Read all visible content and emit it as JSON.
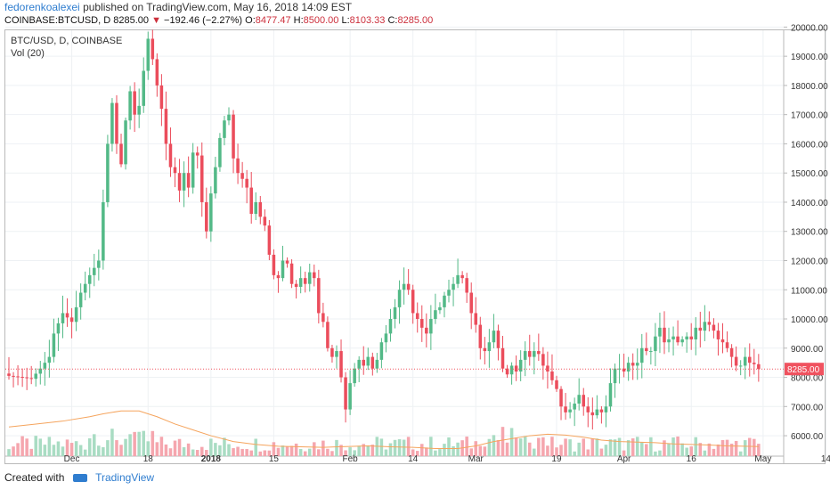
{
  "header": {
    "author": "fedorenkoalexei",
    "published_text": "published on TradingView.com, May 16, 2018 14:09 EST",
    "symbol": "COINBASE:BTCUSD, D",
    "price": "8285.00",
    "change": "−192.46 (−2.27%)",
    "o_label": "O:",
    "o_value": "8477.47",
    "h_label": "H:",
    "h_value": "8500.00",
    "l_label": "L:",
    "l_value": "8103.33",
    "c_label": "C:",
    "c_value": "8285.00"
  },
  "legend": {
    "series": "BTC/USD, D, COINBASE",
    "volume": "Vol (20)"
  },
  "footer": {
    "created_with": "Created with",
    "brand": "TradingView"
  },
  "colors": {
    "up": "#53b987",
    "down": "#eb4d5c",
    "up_vol": "#a9dcc3",
    "down_vol": "#f5a6ae",
    "vol_ma": "#f5a45d",
    "last_price": "#f0525f"
  },
  "chart_data": {
    "type": "candlestick",
    "title": "BTC/USD, D, COINBASE",
    "ylim": [
      5300,
      20500
    ],
    "y_ticks": [
      "20000.00",
      "19000.00",
      "18000.00",
      "17000.00",
      "16000.00",
      "15000.00",
      "14000.00",
      "13000.00",
      "12000.00",
      "11000.00",
      "10000.00",
      "9000.00",
      "8000.00",
      "7000.00",
      "6000.00"
    ],
    "y_tick_values": [
      20000,
      19000,
      18000,
      17000,
      16000,
      15000,
      14000,
      13000,
      12000,
      11000,
      10000,
      9000,
      8000,
      7000,
      6000
    ],
    "x_tick_labels": [
      "Dec",
      "18",
      "2018",
      "15",
      "Feb",
      "14",
      "Mar",
      "19",
      "Apr",
      "16",
      "May",
      "14"
    ],
    "x_tick_days": [
      14,
      31,
      45,
      59,
      76,
      90,
      104,
      122,
      137,
      152,
      168,
      182
    ],
    "last_price": 8285.0,
    "last_price_label": "8285.00",
    "close_path": [
      [
        0,
        8050
      ],
      [
        3,
        8000
      ],
      [
        5,
        7950
      ],
      [
        7,
        8300
      ],
      [
        9,
        8700
      ],
      [
        10,
        9500
      ],
      [
        12,
        10200
      ],
      [
        14,
        9900
      ],
      [
        16,
        10900
      ],
      [
        18,
        11500
      ],
      [
        20,
        12000
      ],
      [
        21,
        14000
      ],
      [
        22,
        16000
      ],
      [
        23,
        17400
      ],
      [
        24,
        16000
      ],
      [
        25,
        15300
      ],
      [
        26,
        16800
      ],
      [
        27,
        17800
      ],
      [
        28,
        17000
      ],
      [
        29,
        17300
      ],
      [
        30,
        18500
      ],
      [
        31,
        19600
      ],
      [
        32,
        18900
      ],
      [
        33,
        18000
      ],
      [
        34,
        17200
      ],
      [
        35,
        16000
      ],
      [
        36,
        15200
      ],
      [
        37,
        15000
      ],
      [
        38,
        14400
      ],
      [
        39,
        15000
      ],
      [
        40,
        14500
      ],
      [
        41,
        15700
      ],
      [
        42,
        15600
      ],
      [
        43,
        14000
      ],
      [
        44,
        13000
      ],
      [
        45,
        14300
      ],
      [
        46,
        15200
      ],
      [
        47,
        16200
      ],
      [
        48,
        16800
      ],
      [
        49,
        17000
      ],
      [
        50,
        15500
      ],
      [
        51,
        15000
      ],
      [
        52,
        14800
      ],
      [
        53,
        14500
      ],
      [
        54,
        13600
      ],
      [
        55,
        14000
      ],
      [
        56,
        13500
      ],
      [
        57,
        13200
      ],
      [
        58,
        12200
      ],
      [
        59,
        11500
      ],
      [
        60,
        11400
      ],
      [
        61,
        12000
      ],
      [
        62,
        11900
      ],
      [
        63,
        11200
      ],
      [
        64,
        11100
      ],
      [
        65,
        11400
      ],
      [
        66,
        11200
      ],
      [
        67,
        11600
      ],
      [
        68,
        11400
      ],
      [
        69,
        10200
      ],
      [
        70,
        9900
      ],
      [
        71,
        9000
      ],
      [
        72,
        8700
      ],
      [
        73,
        8900
      ],
      [
        74,
        8000
      ],
      [
        75,
        6900
      ],
      [
        76,
        7800
      ],
      [
        77,
        8300
      ],
      [
        78,
        8600
      ],
      [
        79,
        8400
      ],
      [
        80,
        8700
      ],
      [
        81,
        8300
      ],
      [
        82,
        8600
      ],
      [
        83,
        9200
      ],
      [
        84,
        9500
      ],
      [
        85,
        10000
      ],
      [
        86,
        10400
      ],
      [
        87,
        11000
      ],
      [
        88,
        11200
      ],
      [
        89,
        11000
      ],
      [
        90,
        10200
      ],
      [
        91,
        10000
      ],
      [
        92,
        9700
      ],
      [
        93,
        9500
      ],
      [
        94,
        10000
      ],
      [
        95,
        10300
      ],
      [
        96,
        10400
      ],
      [
        97,
        10800
      ],
      [
        98,
        11000
      ],
      [
        99,
        11200
      ],
      [
        100,
        11500
      ],
      [
        101,
        11400
      ],
      [
        102,
        10900
      ],
      [
        103,
        10200
      ],
      [
        104,
        9800
      ],
      [
        105,
        9000
      ],
      [
        106,
        8900
      ],
      [
        107,
        9200
      ],
      [
        108,
        9600
      ],
      [
        109,
        9000
      ],
      [
        110,
        8300
      ],
      [
        111,
        8100
      ],
      [
        112,
        8400
      ],
      [
        113,
        8200
      ],
      [
        114,
        8600
      ],
      [
        115,
        8900
      ],
      [
        116,
        8700
      ],
      [
        117,
        8900
      ],
      [
        118,
        8800
      ],
      [
        119,
        8400
      ],
      [
        120,
        8200
      ],
      [
        121,
        7900
      ],
      [
        122,
        7600
      ],
      [
        123,
        7000
      ],
      [
        124,
        6800
      ],
      [
        125,
        6900
      ],
      [
        126,
        7100
      ],
      [
        127,
        7400
      ],
      [
        128,
        7000
      ],
      [
        129,
        6800
      ],
      [
        130,
        6700
      ],
      [
        131,
        6900
      ],
      [
        132,
        6800
      ],
      [
        133,
        7000
      ],
      [
        134,
        7800
      ],
      [
        135,
        8300
      ],
      [
        136,
        8300
      ],
      [
        137,
        8200
      ],
      [
        138,
        8500
      ],
      [
        139,
        8400
      ],
      [
        140,
        8500
      ],
      [
        141,
        9000
      ],
      [
        142,
        8900
      ],
      [
        143,
        8900
      ],
      [
        144,
        9400
      ],
      [
        145,
        9700
      ],
      [
        146,
        9200
      ],
      [
        147,
        9300
      ],
      [
        148,
        9400
      ],
      [
        149,
        9200
      ],
      [
        150,
        9300
      ],
      [
        151,
        9400
      ],
      [
        152,
        9300
      ],
      [
        153,
        9700
      ],
      [
        154,
        9600
      ],
      [
        155,
        9900
      ],
      [
        156,
        9800
      ],
      [
        157,
        9600
      ],
      [
        158,
        9300
      ],
      [
        159,
        9200
      ],
      [
        160,
        9000
      ],
      [
        161,
        8700
      ],
      [
        162,
        8400
      ],
      [
        163,
        8400
      ],
      [
        164,
        8700
      ],
      [
        165,
        8500
      ],
      [
        166,
        8450
      ],
      [
        167,
        8285
      ]
    ],
    "volume_ma_path": [
      [
        0,
        6300
      ],
      [
        6,
        6400
      ],
      [
        12,
        6500
      ],
      [
        18,
        6650
      ],
      [
        21,
        6750
      ],
      [
        25,
        6850
      ],
      [
        29,
        6850
      ],
      [
        33,
        6650
      ],
      [
        37,
        6400
      ],
      [
        41,
        6200
      ],
      [
        45,
        6000
      ],
      [
        50,
        5800
      ],
      [
        55,
        5700
      ],
      [
        60,
        5640
      ],
      [
        65,
        5620
      ],
      [
        70,
        5600
      ],
      [
        75,
        5630
      ],
      [
        80,
        5650
      ],
      [
        85,
        5620
      ],
      [
        90,
        5600
      ],
      [
        95,
        5560
      ],
      [
        100,
        5560
      ],
      [
        104,
        5650
      ],
      [
        108,
        5800
      ],
      [
        112,
        5900
      ],
      [
        116,
        6000
      ],
      [
        120,
        6050
      ],
      [
        124,
        6020
      ],
      [
        128,
        5950
      ],
      [
        132,
        5850
      ],
      [
        136,
        5800
      ],
      [
        140,
        5780
      ],
      [
        144,
        5760
      ],
      [
        148,
        5720
      ],
      [
        152,
        5700
      ],
      [
        156,
        5680
      ],
      [
        160,
        5650
      ],
      [
        164,
        5640
      ],
      [
        167,
        5630
      ]
    ]
  }
}
